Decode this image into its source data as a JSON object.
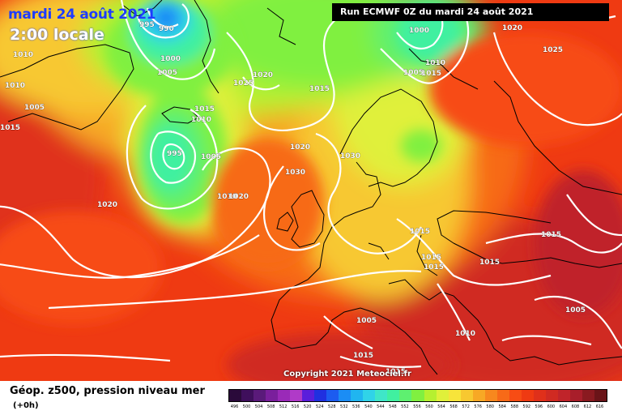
{
  "header": {
    "date_title": "mardi 24 août 2021",
    "time_title": "2:00 locale",
    "run_info": "Run ECMWF 0Z du mardi 24 août 2021"
  },
  "copyright": "Copyright 2021 Meteociel.fr",
  "footer": {
    "title": "Géop. z500, pression niveau mer",
    "subtitle": "(+0h)"
  },
  "legend": {
    "values": [
      "496",
      "500",
      "504",
      "508",
      "512",
      "516",
      "520",
      "524",
      "528",
      "532",
      "536",
      "540",
      "544",
      "548",
      "552",
      "556",
      "560",
      "564",
      "568",
      "572",
      "576",
      "580",
      "584",
      "588",
      "592",
      "596",
      "600",
      "604",
      "608",
      "612",
      "616"
    ],
    "colors": [
      "#2a0a3a",
      "#3f0f5c",
      "#5a1a7a",
      "#7a1f9c",
      "#9a2ab8",
      "#b03ac8",
      "#5a1edb",
      "#2030e0",
      "#1c5cf0",
      "#1b8df5",
      "#20b5f0",
      "#30d3e8",
      "#3fe6c8",
      "#40f0a0",
      "#5ef070",
      "#80f040",
      "#b6f030",
      "#e0f03a",
      "#f7e43a",
      "#f7c830",
      "#f7a825",
      "#f7881e",
      "#f76a18",
      "#f74c14",
      "#ef3a12",
      "#e0301a",
      "#d02a22",
      "#c0242a",
      "#a81e2a",
      "#8a1a20",
      "#6a1418"
    ]
  },
  "isobar_labels": [
    "1010",
    "1010",
    "1015",
    "1005",
    "995",
    "990",
    "1000",
    "1005",
    "1000",
    "1005",
    "1010",
    "1020",
    "1025",
    "1015",
    "1010",
    "995",
    "1005",
    "1015",
    "1020",
    "1010",
    "1020",
    "1020",
    "1025",
    "1030",
    "1030",
    "1015",
    "1015",
    "1015",
    "1015",
    "1015",
    "1005",
    "1010",
    "1005",
    "1015",
    "1015",
    "1015",
    "1020"
  ],
  "low_labels": [
    "990",
    "995"
  ]
}
